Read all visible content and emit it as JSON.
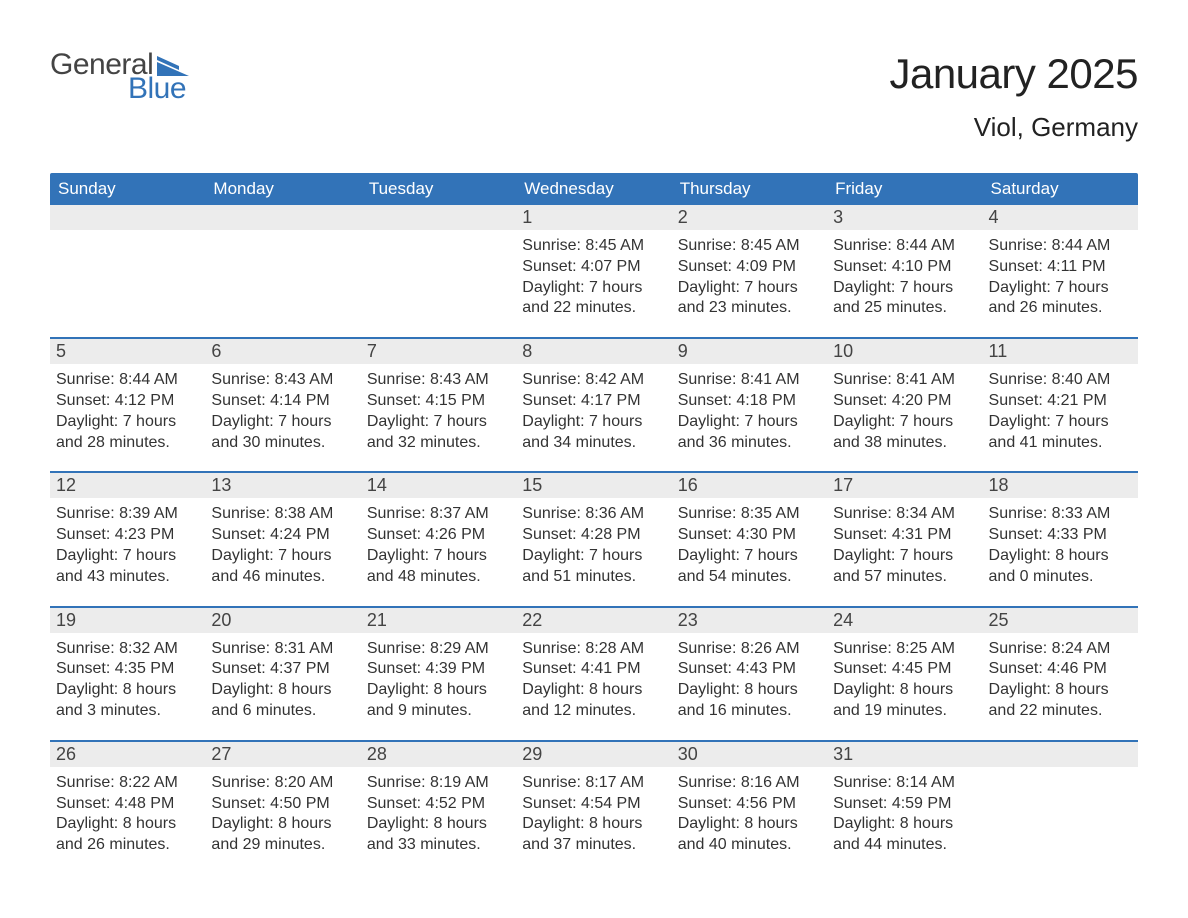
{
  "logo": {
    "text_general": "General",
    "text_blue": "Blue",
    "general_color": "#444444",
    "blue_color": "#3273b8",
    "flag_color": "#3273b8"
  },
  "title": "January 2025",
  "location": "Viol, Germany",
  "colors": {
    "header_bg": "#3273b8",
    "header_text": "#ffffff",
    "daynum_bg": "#ececec",
    "week_border": "#3273b8",
    "body_text": "#333333",
    "page_bg": "#ffffff"
  },
  "day_names": [
    "Sunday",
    "Monday",
    "Tuesday",
    "Wednesday",
    "Thursday",
    "Friday",
    "Saturday"
  ],
  "weeks": [
    [
      {
        "empty": true
      },
      {
        "empty": true
      },
      {
        "empty": true
      },
      {
        "day": "1",
        "sunrise": "Sunrise: 8:45 AM",
        "sunset": "Sunset: 4:07 PM",
        "daylight": "Daylight: 7 hours and 22 minutes."
      },
      {
        "day": "2",
        "sunrise": "Sunrise: 8:45 AM",
        "sunset": "Sunset: 4:09 PM",
        "daylight": "Daylight: 7 hours and 23 minutes."
      },
      {
        "day": "3",
        "sunrise": "Sunrise: 8:44 AM",
        "sunset": "Sunset: 4:10 PM",
        "daylight": "Daylight: 7 hours and 25 minutes."
      },
      {
        "day": "4",
        "sunrise": "Sunrise: 8:44 AM",
        "sunset": "Sunset: 4:11 PM",
        "daylight": "Daylight: 7 hours and 26 minutes."
      }
    ],
    [
      {
        "day": "5",
        "sunrise": "Sunrise: 8:44 AM",
        "sunset": "Sunset: 4:12 PM",
        "daylight": "Daylight: 7 hours and 28 minutes."
      },
      {
        "day": "6",
        "sunrise": "Sunrise: 8:43 AM",
        "sunset": "Sunset: 4:14 PM",
        "daylight": "Daylight: 7 hours and 30 minutes."
      },
      {
        "day": "7",
        "sunrise": "Sunrise: 8:43 AM",
        "sunset": "Sunset: 4:15 PM",
        "daylight": "Daylight: 7 hours and 32 minutes."
      },
      {
        "day": "8",
        "sunrise": "Sunrise: 8:42 AM",
        "sunset": "Sunset: 4:17 PM",
        "daylight": "Daylight: 7 hours and 34 minutes."
      },
      {
        "day": "9",
        "sunrise": "Sunrise: 8:41 AM",
        "sunset": "Sunset: 4:18 PM",
        "daylight": "Daylight: 7 hours and 36 minutes."
      },
      {
        "day": "10",
        "sunrise": "Sunrise: 8:41 AM",
        "sunset": "Sunset: 4:20 PM",
        "daylight": "Daylight: 7 hours and 38 minutes."
      },
      {
        "day": "11",
        "sunrise": "Sunrise: 8:40 AM",
        "sunset": "Sunset: 4:21 PM",
        "daylight": "Daylight: 7 hours and 41 minutes."
      }
    ],
    [
      {
        "day": "12",
        "sunrise": "Sunrise: 8:39 AM",
        "sunset": "Sunset: 4:23 PM",
        "daylight": "Daylight: 7 hours and 43 minutes."
      },
      {
        "day": "13",
        "sunrise": "Sunrise: 8:38 AM",
        "sunset": "Sunset: 4:24 PM",
        "daylight": "Daylight: 7 hours and 46 minutes."
      },
      {
        "day": "14",
        "sunrise": "Sunrise: 8:37 AM",
        "sunset": "Sunset: 4:26 PM",
        "daylight": "Daylight: 7 hours and 48 minutes."
      },
      {
        "day": "15",
        "sunrise": "Sunrise: 8:36 AM",
        "sunset": "Sunset: 4:28 PM",
        "daylight": "Daylight: 7 hours and 51 minutes."
      },
      {
        "day": "16",
        "sunrise": "Sunrise: 8:35 AM",
        "sunset": "Sunset: 4:30 PM",
        "daylight": "Daylight: 7 hours and 54 minutes."
      },
      {
        "day": "17",
        "sunrise": "Sunrise: 8:34 AM",
        "sunset": "Sunset: 4:31 PM",
        "daylight": "Daylight: 7 hours and 57 minutes."
      },
      {
        "day": "18",
        "sunrise": "Sunrise: 8:33 AM",
        "sunset": "Sunset: 4:33 PM",
        "daylight": "Daylight: 8 hours and 0 minutes."
      }
    ],
    [
      {
        "day": "19",
        "sunrise": "Sunrise: 8:32 AM",
        "sunset": "Sunset: 4:35 PM",
        "daylight": "Daylight: 8 hours and 3 minutes."
      },
      {
        "day": "20",
        "sunrise": "Sunrise: 8:31 AM",
        "sunset": "Sunset: 4:37 PM",
        "daylight": "Daylight: 8 hours and 6 minutes."
      },
      {
        "day": "21",
        "sunrise": "Sunrise: 8:29 AM",
        "sunset": "Sunset: 4:39 PM",
        "daylight": "Daylight: 8 hours and 9 minutes."
      },
      {
        "day": "22",
        "sunrise": "Sunrise: 8:28 AM",
        "sunset": "Sunset: 4:41 PM",
        "daylight": "Daylight: 8 hours and 12 minutes."
      },
      {
        "day": "23",
        "sunrise": "Sunrise: 8:26 AM",
        "sunset": "Sunset: 4:43 PM",
        "daylight": "Daylight: 8 hours and 16 minutes."
      },
      {
        "day": "24",
        "sunrise": "Sunrise: 8:25 AM",
        "sunset": "Sunset: 4:45 PM",
        "daylight": "Daylight: 8 hours and 19 minutes."
      },
      {
        "day": "25",
        "sunrise": "Sunrise: 8:24 AM",
        "sunset": "Sunset: 4:46 PM",
        "daylight": "Daylight: 8 hours and 22 minutes."
      }
    ],
    [
      {
        "day": "26",
        "sunrise": "Sunrise: 8:22 AM",
        "sunset": "Sunset: 4:48 PM",
        "daylight": "Daylight: 8 hours and 26 minutes."
      },
      {
        "day": "27",
        "sunrise": "Sunrise: 8:20 AM",
        "sunset": "Sunset: 4:50 PM",
        "daylight": "Daylight: 8 hours and 29 minutes."
      },
      {
        "day": "28",
        "sunrise": "Sunrise: 8:19 AM",
        "sunset": "Sunset: 4:52 PM",
        "daylight": "Daylight: 8 hours and 33 minutes."
      },
      {
        "day": "29",
        "sunrise": "Sunrise: 8:17 AM",
        "sunset": "Sunset: 4:54 PM",
        "daylight": "Daylight: 8 hours and 37 minutes."
      },
      {
        "day": "30",
        "sunrise": "Sunrise: 8:16 AM",
        "sunset": "Sunset: 4:56 PM",
        "daylight": "Daylight: 8 hours and 40 minutes."
      },
      {
        "day": "31",
        "sunrise": "Sunrise: 8:14 AM",
        "sunset": "Sunset: 4:59 PM",
        "daylight": "Daylight: 8 hours and 44 minutes."
      },
      {
        "empty": true
      }
    ]
  ]
}
